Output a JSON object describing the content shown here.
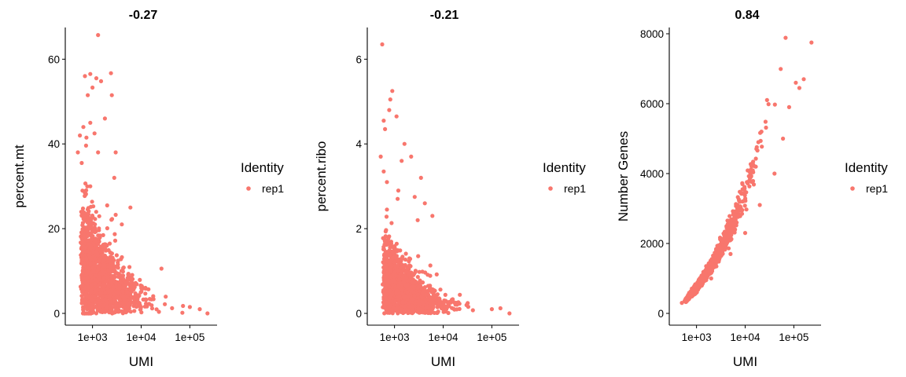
{
  "chart_data": [
    {
      "type": "scatter",
      "title": "-0.27",
      "xlabel": "UMI",
      "ylabel": "percent.mt",
      "x_scale": "log10",
      "xlim": [
        400,
        250000
      ],
      "ylim": [
        0,
        66
      ],
      "x_ticks": [
        1000,
        10000,
        100000
      ],
      "x_tick_labels": [
        "1e+03",
        "1e+04",
        "1e+05"
      ],
      "y_ticks": [
        0,
        20,
        40,
        60
      ],
      "y_tick_labels": [
        "0",
        "20",
        "40",
        "60"
      ],
      "legend": {
        "title": "Identity",
        "items": [
          "rep1"
        ],
        "position": "right"
      },
      "series": [
        {
          "name": "rep1",
          "color": "#F8766D",
          "pattern": "dense cloud highest at low UMI, decaying toward 0 as UMI grows",
          "points": [
            {
              "x": 1300,
              "y": 65.7
            },
            {
              "x": 700,
              "y": 56
            },
            {
              "x": 900,
              "y": 56.5
            },
            {
              "x": 1200,
              "y": 55.5
            },
            {
              "x": 2400,
              "y": 56.7
            },
            {
              "x": 1000,
              "y": 53.3
            },
            {
              "x": 1500,
              "y": 54.8
            },
            {
              "x": 2500,
              "y": 51.5
            },
            {
              "x": 800,
              "y": 51.5
            },
            {
              "x": 1800,
              "y": 46
            },
            {
              "x": 900,
              "y": 45
            },
            {
              "x": 650,
              "y": 44
            },
            {
              "x": 1100,
              "y": 42.5
            },
            {
              "x": 550,
              "y": 42
            },
            {
              "x": 750,
              "y": 41.5
            },
            {
              "x": 3000,
              "y": 38
            },
            {
              "x": 500,
              "y": 38
            },
            {
              "x": 1300,
              "y": 38
            },
            {
              "x": 600,
              "y": 35.5
            },
            {
              "x": 2800,
              "y": 32
            },
            {
              "x": 900,
              "y": 30
            },
            {
              "x": 6000,
              "y": 25
            },
            {
              "x": 2000,
              "y": 25.5
            },
            {
              "x": 4000,
              "y": 21
            },
            {
              "x": 100000,
              "y": 1.5
            },
            {
              "x": 160000,
              "y": 1
            },
            {
              "x": 230000,
              "y": 0
            }
          ]
        }
      ]
    },
    {
      "type": "scatter",
      "title": "-0.21",
      "xlabel": "UMI",
      "ylabel": "percent.ribo",
      "x_scale": "log10",
      "xlim": [
        400,
        250000
      ],
      "ylim": [
        0,
        6.6
      ],
      "x_ticks": [
        1000,
        10000,
        100000
      ],
      "x_tick_labels": [
        "1e+03",
        "1e+04",
        "1e+05"
      ],
      "y_ticks": [
        0,
        2,
        4,
        6
      ],
      "y_tick_labels": [
        "0",
        "2",
        "4",
        "6"
      ],
      "legend": {
        "title": "Identity",
        "items": [
          "rep1"
        ],
        "position": "right"
      },
      "series": [
        {
          "name": "rep1",
          "color": "#F8766D",
          "pattern": "dense cloud highest at low UMI, decaying toward 0 as UMI grows",
          "points": [
            {
              "x": 560,
              "y": 6.35
            },
            {
              "x": 900,
              "y": 5.25
            },
            {
              "x": 820,
              "y": 5.05
            },
            {
              "x": 780,
              "y": 4.8
            },
            {
              "x": 1100,
              "y": 4.65
            },
            {
              "x": 600,
              "y": 4.55
            },
            {
              "x": 640,
              "y": 4.35
            },
            {
              "x": 1600,
              "y": 4.0
            },
            {
              "x": 520,
              "y": 3.7
            },
            {
              "x": 1400,
              "y": 3.6
            },
            {
              "x": 2200,
              "y": 3.7
            },
            {
              "x": 600,
              "y": 3.35
            },
            {
              "x": 3500,
              "y": 3.2
            },
            {
              "x": 700,
              "y": 3.1
            },
            {
              "x": 1200,
              "y": 2.9
            },
            {
              "x": 2600,
              "y": 2.75
            },
            {
              "x": 4200,
              "y": 2.6
            },
            {
              "x": 700,
              "y": 2.45
            },
            {
              "x": 6000,
              "y": 2.3
            },
            {
              "x": 3000,
              "y": 2.2
            },
            {
              "x": 100000,
              "y": 0.1
            },
            {
              "x": 150000,
              "y": 0.12
            },
            {
              "x": 230000,
              "y": 0.0
            }
          ]
        }
      ]
    },
    {
      "type": "scatter",
      "title": "0.84",
      "xlabel": "UMI",
      "ylabel": "Number Genes",
      "x_scale": "log10",
      "xlim": [
        400,
        250000
      ],
      "ylim": [
        0,
        8000
      ],
      "x_ticks": [
        1000,
        10000,
        100000
      ],
      "x_tick_labels": [
        "1e+03",
        "1e+04",
        "1e+05"
      ],
      "y_ticks": [
        0,
        2000,
        4000,
        6000,
        8000
      ],
      "y_tick_labels": [
        "0",
        "2000",
        "4000",
        "6000",
        "8000"
      ],
      "legend": {
        "title": "Identity",
        "items": [
          "rep1"
        ],
        "position": "right"
      },
      "series": [
        {
          "name": "rep1",
          "color": "#F8766D",
          "pattern": "tight curved band rising with UMI",
          "points": [
            {
              "x": 500,
              "y": 300
            },
            {
              "x": 1000,
              "y": 600
            },
            {
              "x": 2000,
              "y": 1000
            },
            {
              "x": 5000,
              "y": 1700
            },
            {
              "x": 10000,
              "y": 2300
            },
            {
              "x": 20000,
              "y": 3100
            },
            {
              "x": 40000,
              "y": 4000
            },
            {
              "x": 60000,
              "y": 5000
            },
            {
              "x": 80000,
              "y": 5900
            },
            {
              "x": 110000,
              "y": 6600
            },
            {
              "x": 130000,
              "y": 6450
            },
            {
              "x": 160000,
              "y": 6700
            },
            {
              "x": 230000,
              "y": 7750
            }
          ]
        }
      ]
    }
  ]
}
